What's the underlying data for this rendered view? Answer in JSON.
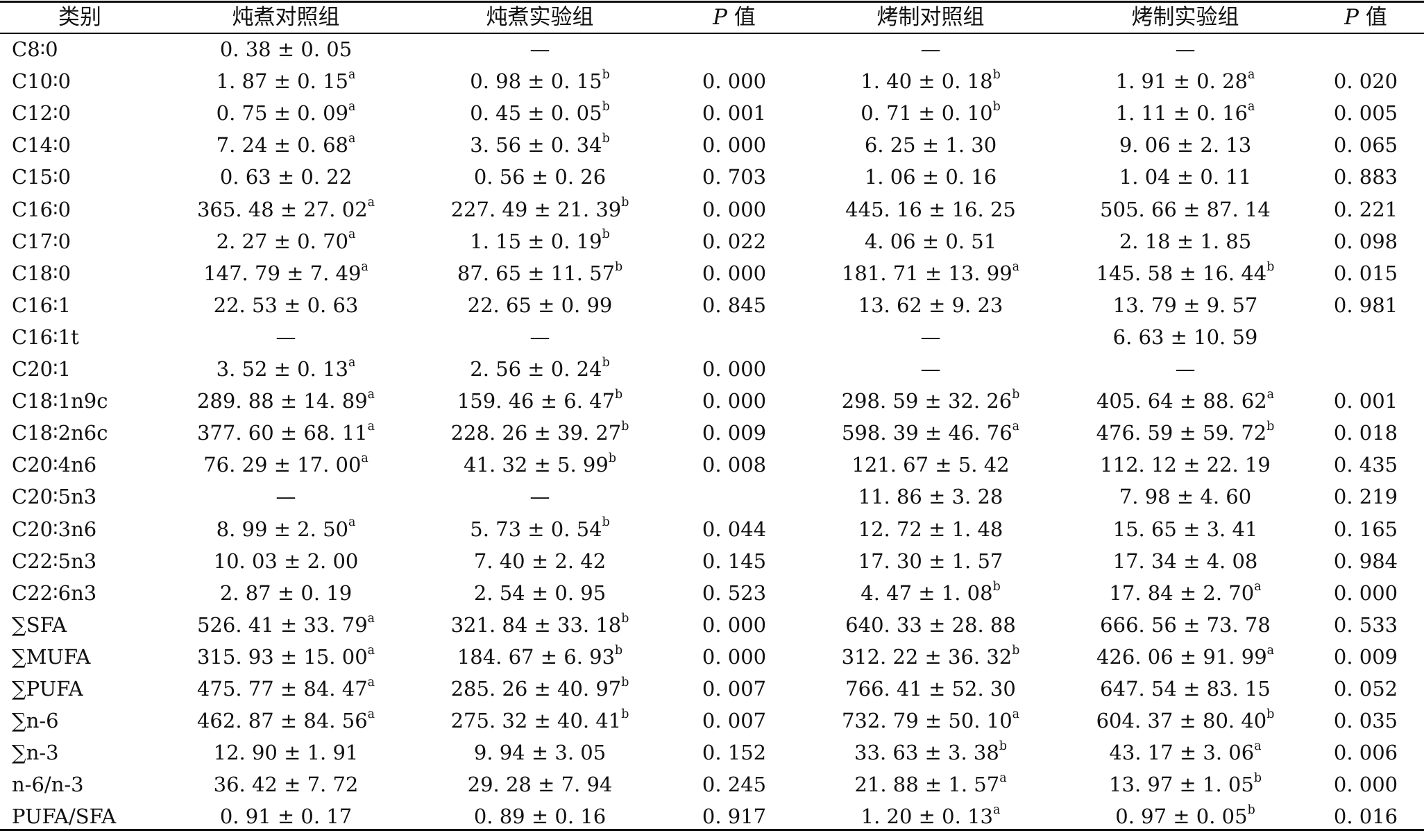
{
  "columns": [
    {
      "key": "category",
      "label": "类别"
    },
    {
      "key": "stew_control",
      "label": "炖煮对照组"
    },
    {
      "key": "stew_exp",
      "label": "炖煮实验组"
    },
    {
      "key": "p1",
      "label_p": "P",
      "label_suffix": " 值"
    },
    {
      "key": "roast_control",
      "label": "烤制对照组"
    },
    {
      "key": "roast_exp",
      "label": "烤制实验组"
    },
    {
      "key": "p2",
      "label_p": "P",
      "label_suffix": " 值"
    }
  ],
  "rows": [
    {
      "name": "C8∶0",
      "c1": {
        "v": "0. 38 ± 0. 05",
        "s": ""
      },
      "c2": {
        "v": "—",
        "s": ""
      },
      "p1": "",
      "c3": {
        "v": "—",
        "s": ""
      },
      "c4": {
        "v": "—",
        "s": ""
      },
      "p2": ""
    },
    {
      "name": "C10∶0",
      "c1": {
        "v": "1. 87 ± 0. 15",
        "s": "a"
      },
      "c2": {
        "v": "0. 98 ± 0. 15",
        "s": "b"
      },
      "p1": "0. 000",
      "c3": {
        "v": "1. 40 ± 0. 18",
        "s": "b"
      },
      "c4": {
        "v": "1. 91 ± 0. 28",
        "s": "a"
      },
      "p2": "0. 020"
    },
    {
      "name": "C12∶0",
      "c1": {
        "v": "0. 75 ± 0. 09",
        "s": "a"
      },
      "c2": {
        "v": "0. 45 ± 0. 05",
        "s": "b"
      },
      "p1": "0. 001",
      "c3": {
        "v": "0. 71 ± 0. 10",
        "s": "b"
      },
      "c4": {
        "v": "1. 11 ± 0. 16",
        "s": "a"
      },
      "p2": "0. 005"
    },
    {
      "name": "C14∶0",
      "c1": {
        "v": "7. 24 ± 0. 68",
        "s": "a"
      },
      "c2": {
        "v": "3. 56 ± 0. 34",
        "s": "b"
      },
      "p1": "0. 000",
      "c3": {
        "v": "6. 25 ± 1. 30",
        "s": ""
      },
      "c4": {
        "v": "9. 06 ± 2. 13",
        "s": ""
      },
      "p2": "0. 065"
    },
    {
      "name": "C15∶0",
      "c1": {
        "v": "0. 63 ± 0. 22",
        "s": ""
      },
      "c2": {
        "v": "0. 56 ± 0. 26",
        "s": ""
      },
      "p1": "0. 703",
      "c3": {
        "v": "1. 06 ± 0. 16",
        "s": ""
      },
      "c4": {
        "v": "1. 04 ± 0. 11",
        "s": ""
      },
      "p2": "0. 883"
    },
    {
      "name": "C16∶0",
      "c1": {
        "v": "365. 48 ± 27. 02",
        "s": "a"
      },
      "c2": {
        "v": "227. 49 ± 21. 39",
        "s": "b"
      },
      "p1": "0. 000",
      "c3": {
        "v": "445. 16 ± 16. 25",
        "s": ""
      },
      "c4": {
        "v": "505. 66 ± 87. 14",
        "s": ""
      },
      "p2": "0. 221"
    },
    {
      "name": "C17∶0",
      "c1": {
        "v": "2. 27 ± 0. 70",
        "s": "a"
      },
      "c2": {
        "v": "1. 15 ± 0. 19",
        "s": "b"
      },
      "p1": "0. 022",
      "c3": {
        "v": "4. 06 ± 0. 51",
        "s": ""
      },
      "c4": {
        "v": "2. 18 ± 1. 85",
        "s": ""
      },
      "p2": "0. 098"
    },
    {
      "name": "C18∶0",
      "c1": {
        "v": "147. 79 ± 7. 49",
        "s": "a"
      },
      "c2": {
        "v": "87. 65 ± 11. 57",
        "s": "b"
      },
      "p1": "0. 000",
      "c3": {
        "v": "181. 71 ± 13. 99",
        "s": "a"
      },
      "c4": {
        "v": "145. 58 ± 16. 44",
        "s": "b"
      },
      "p2": "0. 015"
    },
    {
      "name": "C16∶1",
      "c1": {
        "v": "22. 53 ± 0. 63",
        "s": ""
      },
      "c2": {
        "v": "22. 65 ± 0. 99",
        "s": ""
      },
      "p1": "0. 845",
      "c3": {
        "v": "13. 62 ± 9. 23",
        "s": ""
      },
      "c4": {
        "v": "13. 79 ± 9. 57",
        "s": ""
      },
      "p2": "0. 981"
    },
    {
      "name": "C16∶1t",
      "c1": {
        "v": "—",
        "s": ""
      },
      "c2": {
        "v": "—",
        "s": ""
      },
      "p1": "",
      "c3": {
        "v": "—",
        "s": ""
      },
      "c4": {
        "v": "6. 63 ± 10. 59",
        "s": ""
      },
      "p2": ""
    },
    {
      "name": "C20∶1",
      "c1": {
        "v": "3. 52 ± 0. 13",
        "s": "a"
      },
      "c2": {
        "v": "2. 56 ± 0. 24",
        "s": "b"
      },
      "p1": "0. 000",
      "c3": {
        "v": "—",
        "s": ""
      },
      "c4": {
        "v": "—",
        "s": ""
      },
      "p2": ""
    },
    {
      "name": "C18∶1n9c",
      "c1": {
        "v": "289. 88 ± 14. 89",
        "s": "a"
      },
      "c2": {
        "v": "159. 46 ± 6. 47",
        "s": "b"
      },
      "p1": "0. 000",
      "c3": {
        "v": "298. 59 ± 32. 26",
        "s": "b"
      },
      "c4": {
        "v": "405. 64 ± 88. 62",
        "s": "a"
      },
      "p2": "0. 001"
    },
    {
      "name": "C18∶2n6c",
      "c1": {
        "v": "377. 60 ± 68. 11",
        "s": "a"
      },
      "c2": {
        "v": "228. 26 ± 39. 27",
        "s": "b"
      },
      "p1": "0. 009",
      "c3": {
        "v": "598. 39 ± 46. 76",
        "s": "a"
      },
      "c4": {
        "v": "476. 59 ± 59. 72",
        "s": "b"
      },
      "p2": "0. 018"
    },
    {
      "name": "C20∶4n6",
      "c1": {
        "v": "76. 29 ± 17. 00",
        "s": "a"
      },
      "c2": {
        "v": "41. 32 ± 5. 99",
        "s": "b"
      },
      "p1": "0. 008",
      "c3": {
        "v": "121. 67 ± 5. 42",
        "s": ""
      },
      "c4": {
        "v": "112. 12 ± 22. 19",
        "s": ""
      },
      "p2": "0. 435"
    },
    {
      "name": "C20∶5n3",
      "c1": {
        "v": "—",
        "s": ""
      },
      "c2": {
        "v": "—",
        "s": ""
      },
      "p1": "",
      "c3": {
        "v": "11. 86 ± 3. 28",
        "s": ""
      },
      "c4": {
        "v": "7. 98 ± 4. 60",
        "s": ""
      },
      "p2": "0. 219"
    },
    {
      "name": "C20∶3n6",
      "c1": {
        "v": "8. 99 ± 2. 50",
        "s": "a"
      },
      "c2": {
        "v": "5. 73 ± 0. 54",
        "s": "b"
      },
      "p1": "0. 044",
      "c3": {
        "v": "12. 72 ± 1. 48",
        "s": ""
      },
      "c4": {
        "v": "15. 65 ± 3. 41",
        "s": ""
      },
      "p2": "0. 165"
    },
    {
      "name": "C22∶5n3",
      "c1": {
        "v": "10. 03 ± 2. 00",
        "s": ""
      },
      "c2": {
        "v": "7. 40 ± 2. 42",
        "s": ""
      },
      "p1": "0. 145",
      "c3": {
        "v": "17. 30 ± 1. 57",
        "s": ""
      },
      "c4": {
        "v": "17. 34 ± 4. 08",
        "s": ""
      },
      "p2": "0. 984"
    },
    {
      "name": "C22∶6n3",
      "c1": {
        "v": "2. 87 ± 0. 19",
        "s": ""
      },
      "c2": {
        "v": "2. 54 ± 0. 95",
        "s": ""
      },
      "p1": "0. 523",
      "c3": {
        "v": "4. 47 ± 1. 08",
        "s": "b"
      },
      "c4": {
        "v": "17. 84 ± 2. 70",
        "s": "a"
      },
      "p2": "0. 000"
    },
    {
      "name": "∑SFA",
      "c1": {
        "v": "526. 41 ± 33. 79",
        "s": "a"
      },
      "c2": {
        "v": "321. 84 ± 33. 18",
        "s": "b"
      },
      "p1": "0. 000",
      "c3": {
        "v": "640. 33 ± 28. 88",
        "s": ""
      },
      "c4": {
        "v": "666. 56 ± 73. 78",
        "s": ""
      },
      "p2": "0. 533"
    },
    {
      "name": "∑MUFA",
      "c1": {
        "v": "315. 93 ± 15. 00",
        "s": "a"
      },
      "c2": {
        "v": "184. 67 ± 6. 93",
        "s": "b"
      },
      "p1": "0. 000",
      "c3": {
        "v": "312. 22 ± 36. 32",
        "s": "b"
      },
      "c4": {
        "v": "426. 06 ± 91. 99",
        "s": "a"
      },
      "p2": "0. 009"
    },
    {
      "name": "∑PUFA",
      "c1": {
        "v": "475. 77 ± 84. 47",
        "s": "a"
      },
      "c2": {
        "v": "285. 26 ± 40. 97",
        "s": "b"
      },
      "p1": "0. 007",
      "c3": {
        "v": "766. 41 ± 52. 30",
        "s": ""
      },
      "c4": {
        "v": "647. 54 ± 83. 15",
        "s": ""
      },
      "p2": "0. 052"
    },
    {
      "name": "∑n-6",
      "c1": {
        "v": "462. 87 ± 84. 56",
        "s": "a"
      },
      "c2": {
        "v": "275. 32 ± 40. 41",
        "s": "b"
      },
      "p1": "0. 007",
      "c3": {
        "v": "732. 79 ± 50. 10",
        "s": "a"
      },
      "c4": {
        "v": "604. 37 ± 80. 40",
        "s": "b"
      },
      "p2": "0. 035"
    },
    {
      "name": "∑n-3",
      "c1": {
        "v": "12. 90 ± 1. 91",
        "s": ""
      },
      "c2": {
        "v": "9. 94 ± 3. 05",
        "s": ""
      },
      "p1": "0. 152",
      "c3": {
        "v": "33. 63 ± 3. 38",
        "s": "b"
      },
      "c4": {
        "v": "43. 17 ± 3. 06",
        "s": "a"
      },
      "p2": "0. 006"
    },
    {
      "name": "n-6/n-3",
      "c1": {
        "v": "36. 42 ± 7. 72",
        "s": ""
      },
      "c2": {
        "v": "29. 28 ± 7. 94",
        "s": ""
      },
      "p1": "0. 245",
      "c3": {
        "v": "21. 88 ± 1. 57",
        "s": "a"
      },
      "c4": {
        "v": "13. 97 ± 1. 05",
        "s": "b"
      },
      "p2": "0. 000"
    },
    {
      "name": "PUFA/SFA",
      "c1": {
        "v": "0. 91 ± 0. 17",
        "s": ""
      },
      "c2": {
        "v": "0. 89 ± 0. 16",
        "s": ""
      },
      "p1": "0. 917",
      "c3": {
        "v": "1. 20 ± 0. 13",
        "s": "a"
      },
      "c4": {
        "v": "0. 97 ± 0. 05",
        "s": "b"
      },
      "p2": "0. 016"
    }
  ]
}
